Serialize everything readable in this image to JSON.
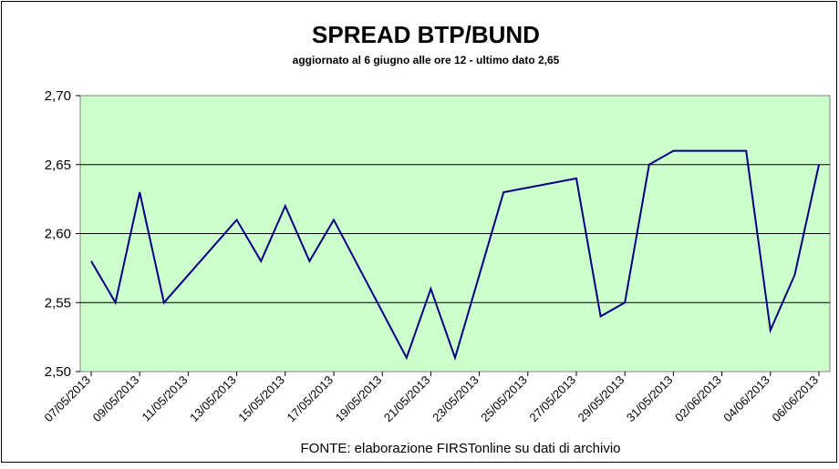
{
  "chart_data": {
    "type": "line",
    "title": "SPREAD  BTP/BUND",
    "subtitle": "aggiornato al 6 giugno alle ore 12 - ultimo dato 2,65",
    "source": "FONTE: elaborazione FIRSTonline su dati di archivio",
    "x": [
      "07/05/2013",
      "08/05/2013",
      "09/05/2013",
      "10/05/2013",
      "13/05/2013",
      "14/05/2013",
      "15/05/2013",
      "16/05/2013",
      "17/05/2013",
      "20/05/2013",
      "21/05/2013",
      "22/05/2013",
      "24/05/2013",
      "27/05/2013",
      "28/05/2013",
      "29/05/2013",
      "30/05/2013",
      "31/05/2013",
      "03/06/2013",
      "04/06/2013",
      "05/06/2013",
      "06/06/2013"
    ],
    "series": [
      {
        "name": "Spread",
        "color": "#000080",
        "values": [
          2.58,
          2.55,
          2.63,
          2.55,
          2.61,
          2.58,
          2.62,
          2.58,
          2.61,
          2.51,
          2.56,
          2.51,
          2.63,
          2.64,
          2.54,
          2.55,
          2.65,
          2.66,
          2.66,
          2.53,
          2.57,
          2.65
        ]
      }
    ],
    "xlim": [
      "07/05/2013",
      "06/06/2013"
    ],
    "xticks": [
      "07/05/2013",
      "09/05/2013",
      "11/05/2013",
      "13/05/2013",
      "15/05/2013",
      "17/05/2013",
      "19/05/2013",
      "21/05/2013",
      "23/05/2013",
      "25/05/2013",
      "27/05/2013",
      "29/05/2013",
      "31/05/2013",
      "02/06/2013",
      "04/06/2013",
      "06/06/2013"
    ],
    "ylim": [
      2.5,
      2.7
    ],
    "yticks": [
      {
        "value": 2.5,
        "label": "2,50"
      },
      {
        "value": 2.55,
        "label": "2,55"
      },
      {
        "value": 2.6,
        "label": "2,60"
      },
      {
        "value": 2.65,
        "label": "2,65"
      },
      {
        "value": 2.7,
        "label": "2,70"
      }
    ],
    "grid": true
  }
}
